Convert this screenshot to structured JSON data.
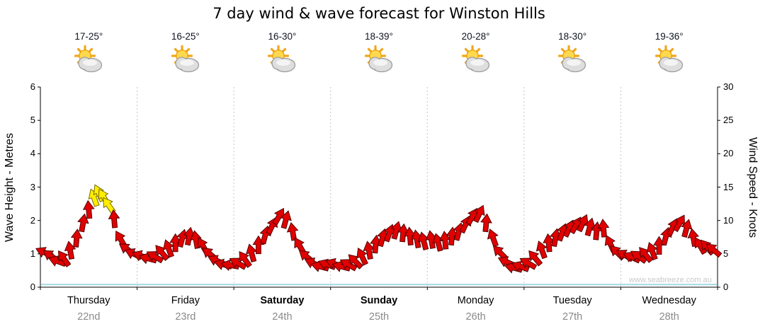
{
  "title": "7 day wind & wave forecast for Winston Hills",
  "watermark": "www.seabreeze.com.au",
  "weather_icon": "sun-behind-cloud",
  "days": [
    {
      "name": "Thursday",
      "date": "22nd",
      "temp": "17-25°",
      "weekend": false
    },
    {
      "name": "Friday",
      "date": "23rd",
      "temp": "16-25°",
      "weekend": false
    },
    {
      "name": "Saturday",
      "date": "24th",
      "temp": "16-30°",
      "weekend": true
    },
    {
      "name": "Sunday",
      "date": "25th",
      "temp": "18-39°",
      "weekend": true
    },
    {
      "name": "Monday",
      "date": "26th",
      "temp": "20-28°",
      "weekend": false
    },
    {
      "name": "Tuesday",
      "date": "27th",
      "temp": "18-30°",
      "weekend": false
    },
    {
      "name": "Wednesday",
      "date": "28th",
      "temp": "19-36°",
      "weekend": false
    }
  ],
  "axes": {
    "left_label": "Wave Height - Metres",
    "right_label": "Wind Speed - Knots",
    "left_ticks": [
      0,
      1,
      2,
      3,
      4,
      5,
      6
    ],
    "right_ticks": [
      0,
      5,
      10,
      15,
      20,
      25,
      30
    ]
  },
  "colors": {
    "arrow_red": "#e00000",
    "arrow_red_outline": "#550000",
    "arrow_yellow": "#ffee00",
    "arrow_yellow_outline": "#7a6a00",
    "wave_line": "#9fd9e6",
    "grid_line": "#c6c6c6",
    "axis": "#000000",
    "date_text": "#8a8a8a",
    "watermark_text": "#c9c9c9"
  },
  "chart_data": {
    "type": "scatter",
    "marker": "wind-arrow",
    "title": "7 day wind & wave forecast for Winston Hills",
    "x_axis": {
      "unit": "hours",
      "range": [
        0,
        168
      ],
      "gridlines_every_hours": 24
    },
    "y_left": {
      "label": "Wave Height - Metres",
      "range": [
        0,
        6
      ],
      "ticks": [
        0,
        1,
        2,
        3,
        4,
        5,
        6
      ]
    },
    "y_right": {
      "label": "Wind Speed - Knots",
      "range": [
        0,
        30
      ],
      "ticks": [
        0,
        5,
        10,
        15,
        20,
        25,
        30
      ]
    },
    "legend": "none",
    "point_format": [
      "hour",
      "wind_knots",
      "rotation_deg_clockwise_from_east",
      "color"
    ],
    "points": [
      [
        1.0,
        5.2,
        205,
        "red"
      ],
      [
        2.6,
        4.7,
        215,
        "red"
      ],
      [
        4.2,
        3.9,
        200,
        "red"
      ],
      [
        5.8,
        4.3,
        235,
        "red"
      ],
      [
        7.4,
        5.5,
        260,
        "red"
      ],
      [
        9.0,
        7.3,
        275,
        "red"
      ],
      [
        10.6,
        9.6,
        280,
        "red"
      ],
      [
        12.0,
        11.6,
        265,
        "red"
      ],
      [
        13.3,
        13.4,
        250,
        "yellow"
      ],
      [
        14.5,
        14.1,
        245,
        "yellow"
      ],
      [
        15.7,
        13.5,
        240,
        "yellow"
      ],
      [
        16.9,
        12.3,
        235,
        "yellow"
      ],
      [
        18.3,
        10.2,
        265,
        "red"
      ],
      [
        19.9,
        7.2,
        240,
        "red"
      ],
      [
        21.5,
        5.7,
        215,
        "red"
      ],
      [
        23.1,
        5.0,
        205,
        "red"
      ],
      [
        25.0,
        4.7,
        200,
        "red"
      ],
      [
        26.7,
        4.3,
        195,
        "red"
      ],
      [
        28.4,
        4.6,
        210,
        "red"
      ],
      [
        30.1,
        5.2,
        230,
        "red"
      ],
      [
        31.8,
        5.8,
        250,
        "red"
      ],
      [
        33.5,
        6.6,
        270,
        "red"
      ],
      [
        35.2,
        7.3,
        285,
        "red"
      ],
      [
        36.9,
        7.6,
        280,
        "red"
      ],
      [
        38.6,
        7.1,
        260,
        "red"
      ],
      [
        40.3,
        6.2,
        240,
        "red"
      ],
      [
        42.0,
        5.0,
        220,
        "red"
      ],
      [
        43.7,
        4.0,
        205,
        "red"
      ],
      [
        45.4,
        3.4,
        195,
        "red"
      ],
      [
        47.1,
        3.3,
        190,
        "red"
      ],
      [
        49.0,
        3.6,
        210,
        "red"
      ],
      [
        50.7,
        4.2,
        235,
        "red"
      ],
      [
        52.4,
        5.1,
        255,
        "red"
      ],
      [
        54.1,
        6.3,
        270,
        "red"
      ],
      [
        55.8,
        7.8,
        285,
        "red"
      ],
      [
        57.5,
        9.2,
        295,
        "red"
      ],
      [
        59.2,
        10.6,
        300,
        "red"
      ],
      [
        60.9,
        10.1,
        285,
        "red"
      ],
      [
        62.6,
        8.3,
        260,
        "red"
      ],
      [
        64.3,
        6.2,
        240,
        "red"
      ],
      [
        66.0,
        4.6,
        220,
        "red"
      ],
      [
        67.7,
        3.6,
        205,
        "red"
      ],
      [
        69.4,
        3.1,
        195,
        "red"
      ],
      [
        71.1,
        3.4,
        200,
        "red"
      ],
      [
        73.0,
        3.5,
        200,
        "red"
      ],
      [
        74.7,
        3.1,
        195,
        "red"
      ],
      [
        76.4,
        3.4,
        210,
        "red"
      ],
      [
        78.1,
        3.9,
        225,
        "red"
      ],
      [
        79.8,
        4.6,
        245,
        "red"
      ],
      [
        81.5,
        5.5,
        260,
        "red"
      ],
      [
        83.2,
        6.4,
        275,
        "red"
      ],
      [
        84.9,
        7.4,
        285,
        "red"
      ],
      [
        86.6,
        8.1,
        290,
        "red"
      ],
      [
        88.3,
        8.5,
        285,
        "red"
      ],
      [
        90.0,
        8.1,
        275,
        "red"
      ],
      [
        91.7,
        7.6,
        265,
        "red"
      ],
      [
        93.4,
        7.2,
        260,
        "red"
      ],
      [
        95.1,
        6.9,
        255,
        "red"
      ],
      [
        97.0,
        7.1,
        260,
        "red"
      ],
      [
        98.7,
        6.7,
        255,
        "red"
      ],
      [
        100.4,
        7.0,
        265,
        "red"
      ],
      [
        102.1,
        7.6,
        275,
        "red"
      ],
      [
        103.8,
        8.3,
        285,
        "red"
      ],
      [
        105.5,
        9.4,
        295,
        "red"
      ],
      [
        107.2,
        10.6,
        300,
        "red"
      ],
      [
        108.9,
        11.0,
        295,
        "red"
      ],
      [
        110.6,
        9.6,
        275,
        "red"
      ],
      [
        112.3,
        7.4,
        250,
        "red"
      ],
      [
        114.0,
        5.2,
        225,
        "red"
      ],
      [
        115.7,
        3.8,
        205,
        "red"
      ],
      [
        117.4,
        2.9,
        195,
        "red"
      ],
      [
        119.1,
        3.1,
        200,
        "red"
      ],
      [
        121.0,
        3.6,
        210,
        "red"
      ],
      [
        122.7,
        4.4,
        230,
        "red"
      ],
      [
        124.4,
        5.6,
        250,
        "red"
      ],
      [
        126.1,
        6.6,
        265,
        "red"
      ],
      [
        127.8,
        7.4,
        280,
        "red"
      ],
      [
        129.5,
        8.2,
        290,
        "red"
      ],
      [
        131.2,
        8.8,
        295,
        "red"
      ],
      [
        132.9,
        9.3,
        300,
        "red"
      ],
      [
        134.6,
        9.6,
        295,
        "red"
      ],
      [
        136.3,
        9.0,
        285,
        "red"
      ],
      [
        138.0,
        8.4,
        275,
        "red"
      ],
      [
        139.7,
        8.8,
        265,
        "red"
      ],
      [
        141.4,
        6.5,
        245,
        "red"
      ],
      [
        143.1,
        5.2,
        225,
        "red"
      ],
      [
        145.0,
        4.8,
        210,
        "red"
      ],
      [
        146.7,
        4.5,
        205,
        "red"
      ],
      [
        148.4,
        4.6,
        215,
        "red"
      ],
      [
        150.1,
        4.9,
        230,
        "red"
      ],
      [
        151.8,
        5.4,
        250,
        "red"
      ],
      [
        153.5,
        6.2,
        270,
        "red"
      ],
      [
        155.2,
        7.6,
        285,
        "red"
      ],
      [
        156.9,
        9.0,
        295,
        "red"
      ],
      [
        158.6,
        9.6,
        300,
        "red"
      ],
      [
        160.3,
        8.8,
        285,
        "red"
      ],
      [
        162.0,
        7.4,
        260,
        "red"
      ],
      [
        163.7,
        6.2,
        240,
        "red"
      ],
      [
        165.4,
        6.0,
        230,
        "red"
      ],
      [
        167.0,
        5.6,
        220,
        "red"
      ]
    ],
    "wave_height_line": {
      "type": "line",
      "approx_value_m": 0.08,
      "color_key": "wave_line"
    }
  }
}
